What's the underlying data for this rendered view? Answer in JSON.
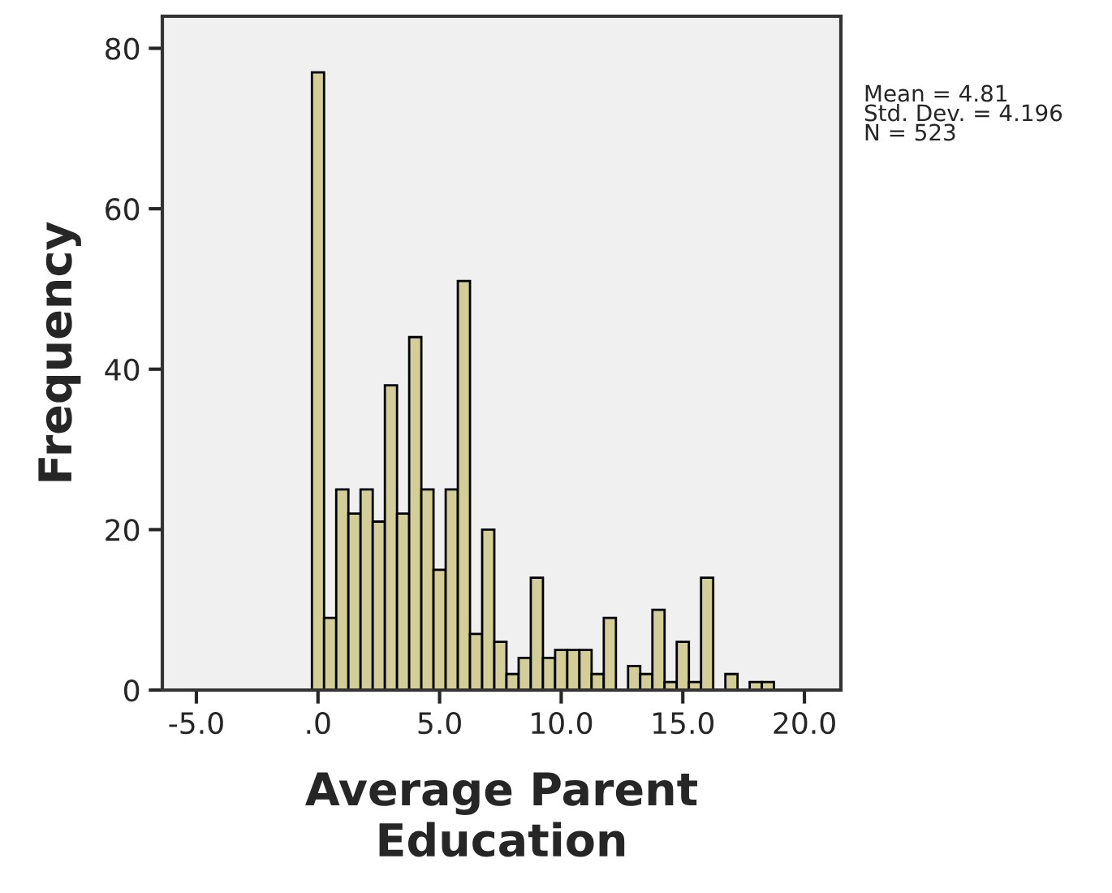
{
  "chart_data": {
    "type": "histogram",
    "xlabel": "Average Parent\nEducation",
    "ylabel": "Frequency",
    "bins": [
      -0.25,
      0.25,
      0.75,
      1.25,
      1.75,
      2.25,
      2.75,
      3.25,
      3.75,
      4.25,
      4.75,
      5.25,
      5.75,
      6.25,
      6.75,
      7.25,
      7.75,
      8.25,
      8.75,
      9.25,
      9.75,
      10.25,
      10.75,
      11.25,
      11.75,
      12.25,
      12.75,
      13.25,
      13.75,
      14.25,
      14.75,
      15.25,
      15.75,
      16.25,
      16.75,
      17.25,
      17.75,
      18.25,
      18.75
    ],
    "values": [
      77,
      9,
      25,
      22,
      25,
      21,
      38,
      22,
      44,
      25,
      15,
      25,
      51,
      7,
      20,
      6,
      2,
      4,
      14,
      4,
      5,
      5,
      5,
      2,
      9,
      0,
      3,
      2,
      10,
      1,
      6,
      1,
      14,
      0,
      2,
      0,
      1,
      1
    ],
    "color": "#d3ce97",
    "xlim": [
      -6.4,
      21.5
    ],
    "xticks": [
      {
        "value": -5,
        "label": "-5.0"
      },
      {
        "value": 0,
        "label": ".0"
      },
      {
        "value": 5,
        "label": "5.0"
      },
      {
        "value": 10,
        "label": "10.0"
      },
      {
        "value": 15,
        "label": "15.0"
      },
      {
        "value": 20,
        "label": "20.0"
      }
    ],
    "ylim": [
      0,
      84
    ],
    "yticks": [
      0,
      20,
      40,
      60,
      80
    ],
    "grid": false,
    "legend": false,
    "annotations": [
      "Mean = 4.81",
      "Std. Dev. = 4.196",
      "N = 523"
    ]
  }
}
